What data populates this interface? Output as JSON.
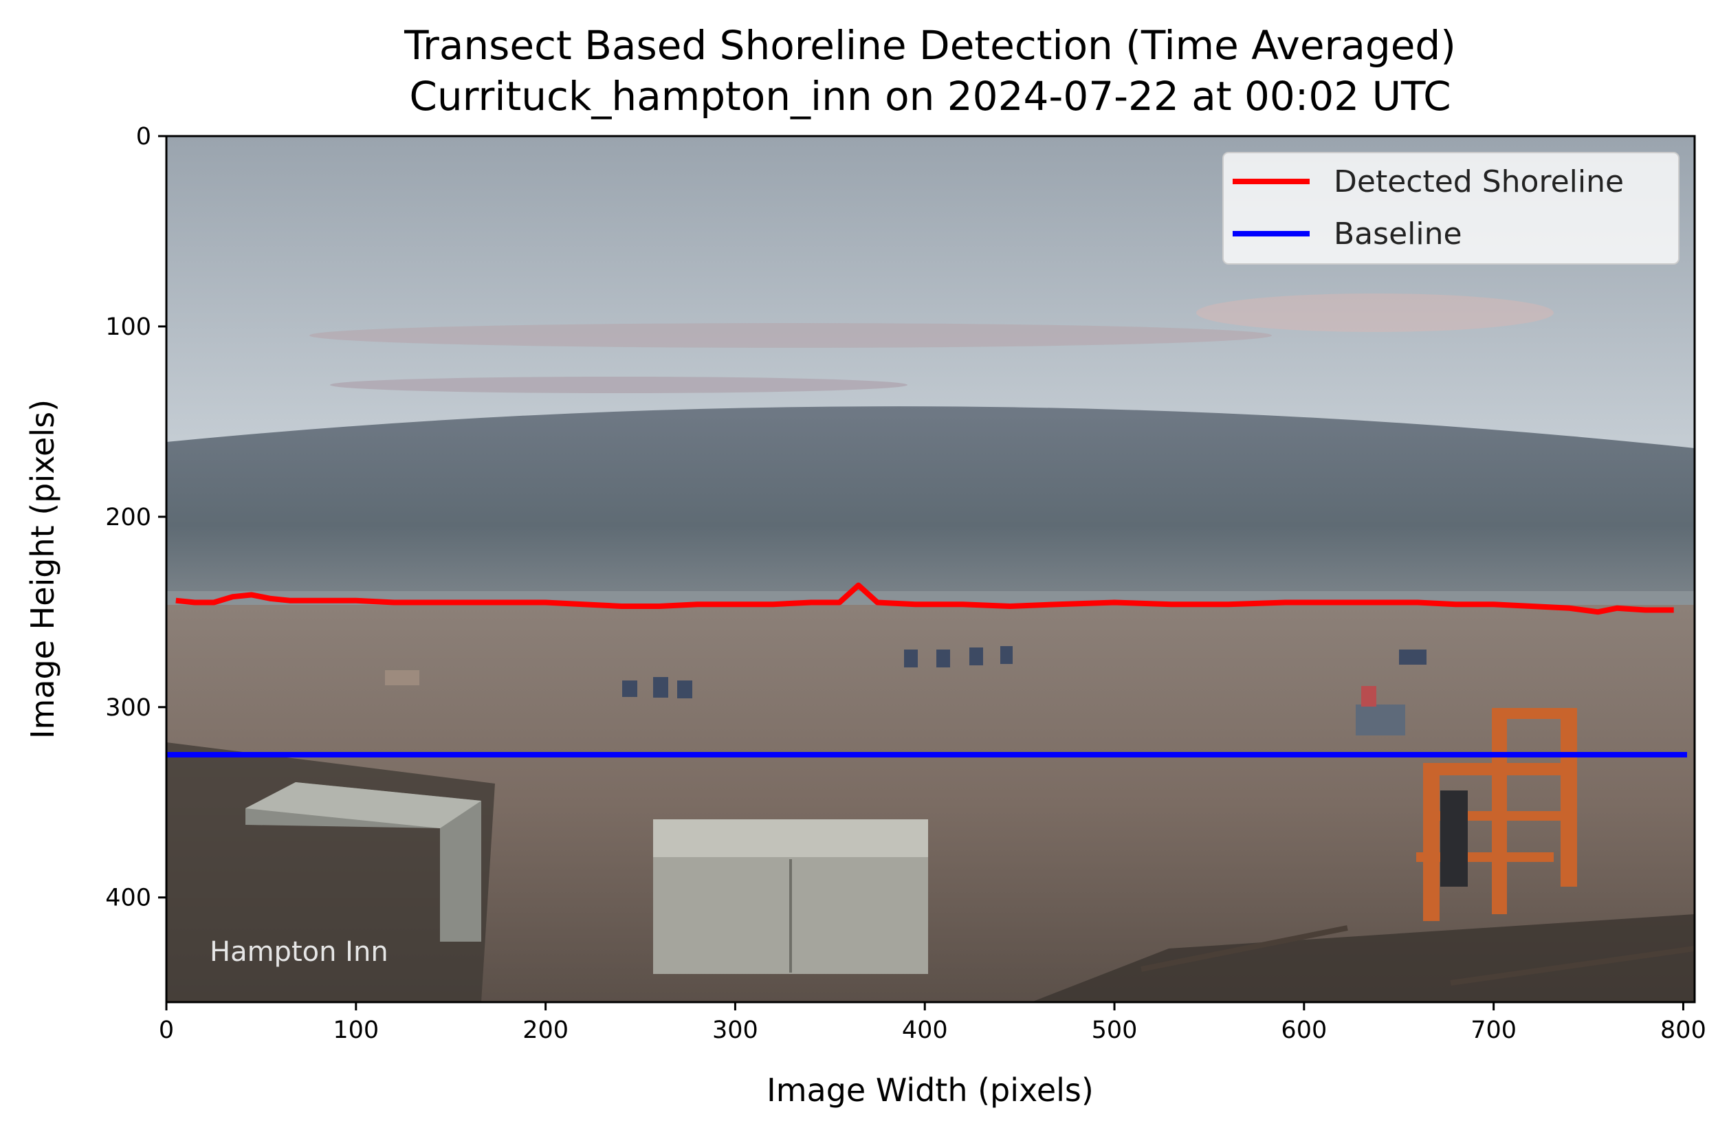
{
  "chart_data": {
    "type": "line",
    "title": "Transect Based Shoreline Detection (Time Averaged)",
    "subtitle": "Currituck_hampton_inn on 2024-07-22 at 00:02 UTC",
    "xlabel": "Image Width (pixels)",
    "ylabel": "Image Height (pixels)",
    "xlim": [
      0,
      806
    ],
    "ylim": [
      455,
      0
    ],
    "y_inverted": true,
    "grid": false,
    "legend_position": "top-right",
    "x_ticks": [
      0,
      100,
      200,
      300,
      400,
      500,
      600,
      700,
      800
    ],
    "y_ticks": [
      0,
      100,
      200,
      300,
      400
    ],
    "background": "beach webcam image (dusk sky, ocean, sandy beach with chairs and people, storage boxes, orange lifeguard stand, dune fence)",
    "image_watermark": "Hampton Inn",
    "series": [
      {
        "name": "Detected Shoreline",
        "color": "#ff0000",
        "x": [
          5,
          15,
          25,
          35,
          45,
          55,
          65,
          80,
          100,
          120,
          140,
          160,
          180,
          200,
          220,
          240,
          260,
          280,
          300,
          320,
          340,
          355,
          365,
          375,
          395,
          420,
          445,
          470,
          500,
          530,
          560,
          590,
          620,
          640,
          660,
          680,
          700,
          720,
          740,
          755,
          765,
          780,
          795
        ],
        "y": [
          244,
          245,
          245,
          242,
          241,
          243,
          244,
          244,
          244,
          245,
          245,
          245,
          245,
          245,
          246,
          247,
          247,
          246,
          246,
          246,
          245,
          245,
          236,
          245,
          246,
          246,
          247,
          246,
          245,
          246,
          246,
          245,
          245,
          245,
          245,
          246,
          246,
          247,
          248,
          250,
          248,
          249,
          249
        ]
      },
      {
        "name": "Baseline",
        "color": "#0000ff",
        "x": [
          0,
          802
        ],
        "y": [
          325,
          325
        ]
      }
    ]
  }
}
